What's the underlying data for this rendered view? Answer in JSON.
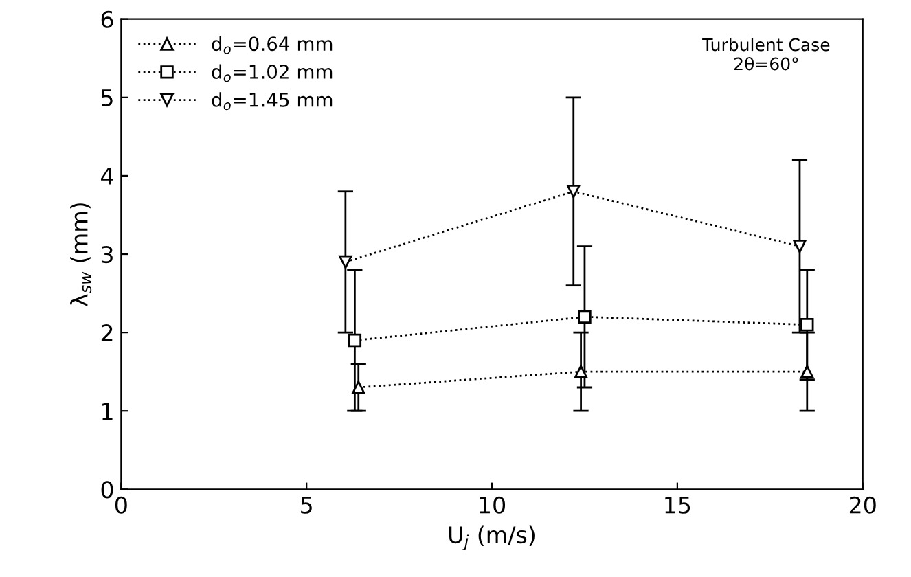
{
  "chart_data": {
    "type": "line",
    "xlabel": "U$_{j}$ (m/s)",
    "ylabel": "λ$_{sw}$ (mm)",
    "xlim": [
      0,
      20
    ],
    "ylim": [
      0,
      6
    ],
    "xticks": [
      0,
      5,
      10,
      15,
      20
    ],
    "yticks": [
      0,
      1,
      2,
      3,
      4,
      5,
      6
    ],
    "grid": false,
    "legend": "top left",
    "line_style": "dotted",
    "annotations": [
      "Turbulent Case\n2θ=60°"
    ],
    "series": [
      {
        "name": "d$_{o}$=0.64 mm",
        "color": "#000000",
        "marker": "triangle",
        "x": [
          6.4,
          12.4,
          18.5
        ],
        "values": [
          1.3,
          1.5,
          1.5
        ],
        "errors": [
          [
            1.0,
            1.6
          ],
          [
            1.0,
            2.0
          ],
          [
            1.0,
            2.0
          ]
        ]
      },
      {
        "name": "d$_{o}$=1.02 mm",
        "color": "#000000",
        "marker": "square",
        "x": [
          6.3,
          12.5,
          18.5
        ],
        "values": [
          1.9,
          2.2,
          2.1
        ],
        "errors": [
          [
            1.0,
            2.8
          ],
          [
            1.3,
            3.1
          ],
          [
            1.4,
            2.8
          ]
        ]
      },
      {
        "name": "d$_{o}$=1.45 mm",
        "color": "#000000",
        "marker": "triangle_down",
        "x": [
          6.05,
          12.2,
          18.3
        ],
        "values": [
          2.9,
          3.8,
          3.1
        ],
        "errors": [
          [
            2.0,
            3.8
          ],
          [
            2.6,
            5.0
          ],
          [
            2.0,
            4.2
          ]
        ]
      }
    ]
  }
}
